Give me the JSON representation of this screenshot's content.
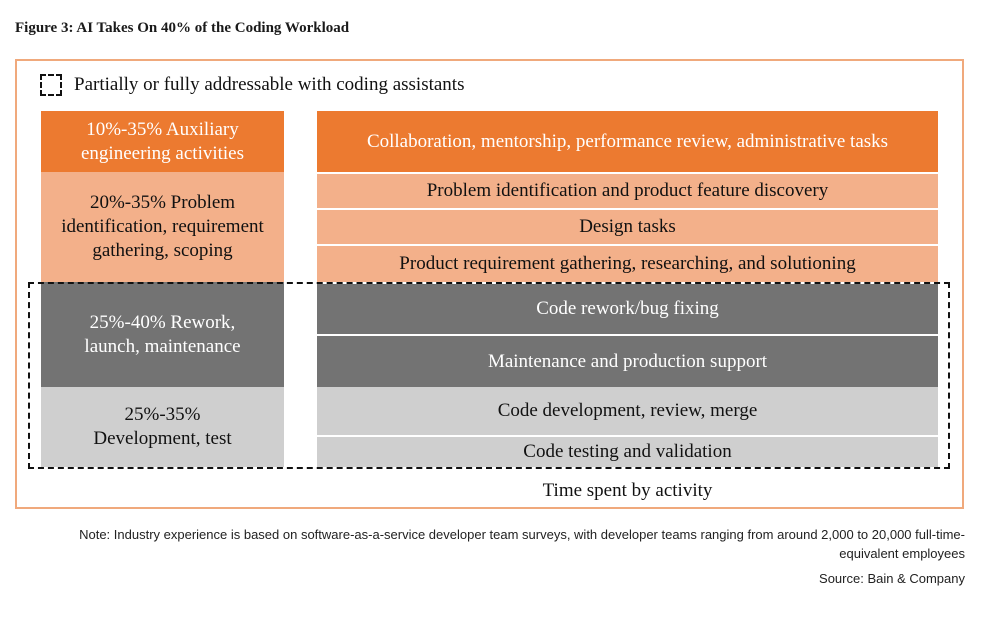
{
  "title": "Figure 3: AI Takes On 40% of the Coding Workload",
  "legend": {
    "label": "Partially or fully addressable with coding assistants"
  },
  "categories": [
    {
      "label": "10%-35% Auxiliary engineering activities",
      "activities": [
        "Collaboration, mentorship, performance review, administrative tasks"
      ]
    },
    {
      "label": "20%-35% Problem identification, requirement gathering, scoping",
      "activities": [
        "Problem identification and product feature discovery",
        "Design tasks",
        "Product requirement gathering, researching, and solutioning"
      ]
    },
    {
      "label": "25%-40% Rework, launch, maintenance",
      "activities": [
        "Code rework/bug fixing",
        "Maintenance and production support"
      ]
    },
    {
      "label": "25%-35% Development, test",
      "activities": [
        "Code development, review, merge",
        "Code testing and validation"
      ]
    }
  ],
  "axis_label": "Time spent by activity",
  "note": "Note: Industry experience is based on software-as-a-service developer team surveys, with developer teams ranging from around 2,000 to 20,000 full-time-equivalent employees",
  "source": "Source: Bain & Company",
  "colors": {
    "dark_orange": "#ec7a30",
    "light_orange": "#f3b08a",
    "gray": "#737373",
    "light_gray": "#cfcfcf",
    "frame": "#f0a97c"
  }
}
